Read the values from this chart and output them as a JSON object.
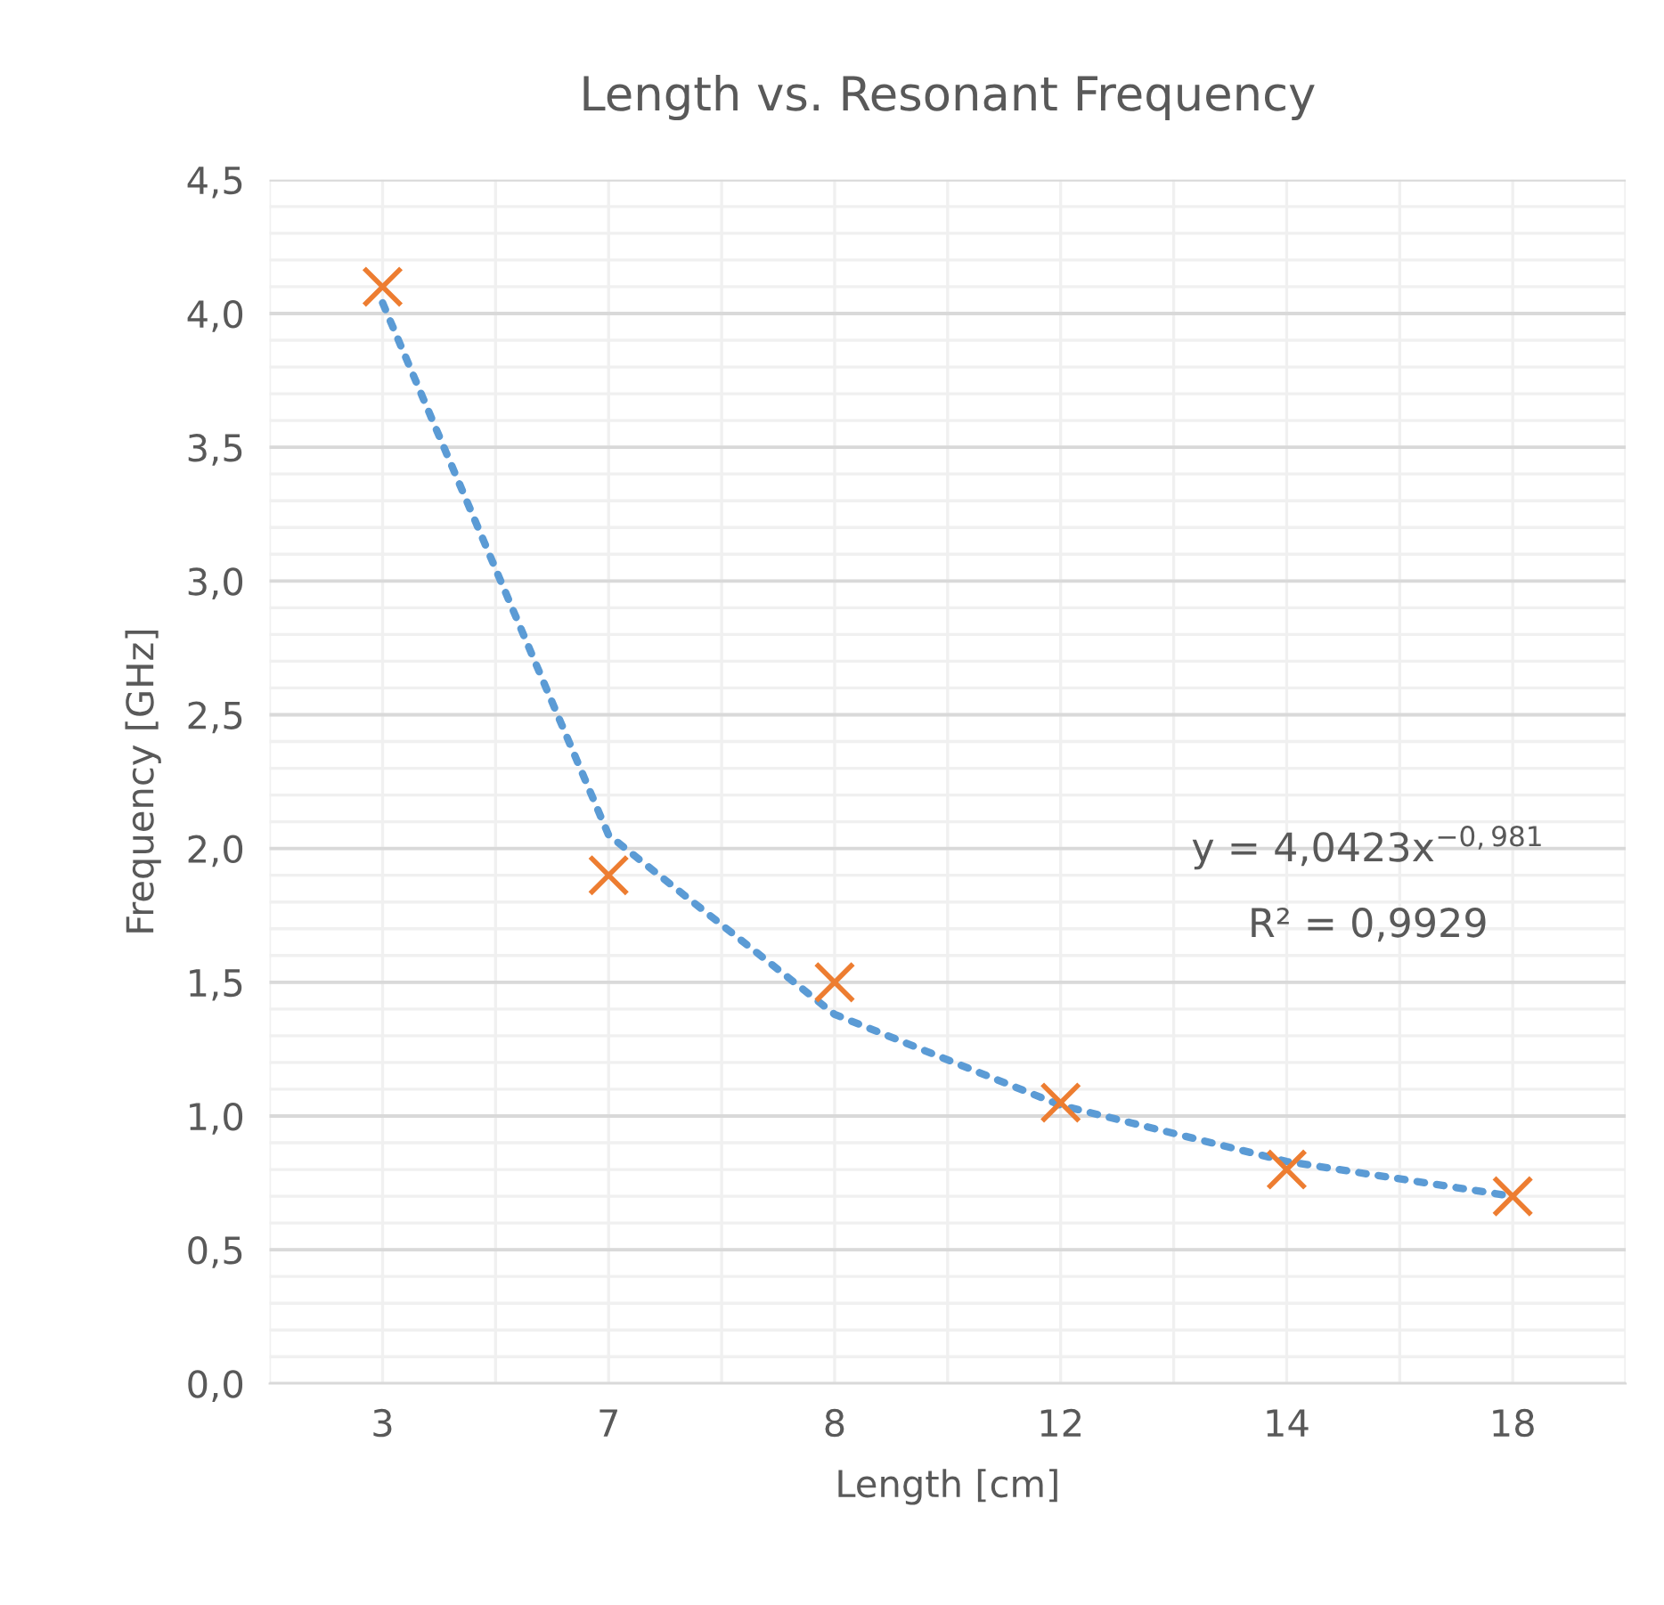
{
  "chart_data": {
    "type": "scatter",
    "title": "Length vs. Resonant Frequency",
    "xlabel": "Length [cm]",
    "ylabel": "Frequency [GHz]",
    "categories": [
      "3",
      "7",
      "8",
      "12",
      "14",
      "18"
    ],
    "series": [
      {
        "color": "#ed7d31",
        "marker": "cross",
        "values": [
          4.1,
          1.9,
          1.5,
          1.05,
          0.8,
          0.7
        ]
      },
      {
        "type": "line",
        "color": "#5b9bd5",
        "line_style": "dotted",
        "marker": "none",
        "values": [
          4.04,
          2.05,
          1.38,
          1.04,
          0.83,
          0.7
        ]
      }
    ],
    "ylim": [
      0,
      4.5
    ],
    "yticks": [
      {
        "value": 0,
        "label": "0,0"
      },
      {
        "value": 0.5,
        "label": "0,5"
      },
      {
        "value": 1,
        "label": "1,0"
      },
      {
        "value": 1.5,
        "label": "1,5"
      },
      {
        "value": 2,
        "label": "2,0"
      },
      {
        "value": 2.5,
        "label": "2,5"
      },
      {
        "value": 3,
        "label": "3,0"
      },
      {
        "value": 3.5,
        "label": "3,5"
      },
      {
        "value": 4,
        "label": "4,0"
      },
      {
        "value": 4.5,
        "label": "4,5"
      }
    ],
    "grid": true,
    "annotations": [
      "y = 4,0423x$^{−0,981}$",
      "R² = 0,9929"
    ]
  }
}
